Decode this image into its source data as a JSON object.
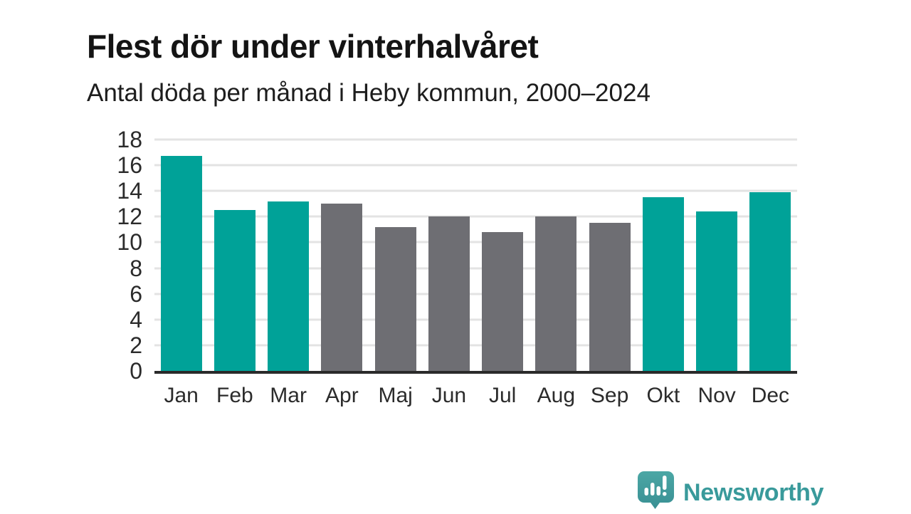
{
  "header": {
    "title": "Flest dör under vinterhalvåret",
    "subtitle": "Antal döda per månad i Heby kommun, 2000–2024"
  },
  "chart_data": {
    "type": "bar",
    "title": "Flest dör under vinterhalvåret",
    "subtitle": "Antal döda per månad i Heby kommun, 2000–2024",
    "categories": [
      "Jan",
      "Feb",
      "Mar",
      "Apr",
      "Maj",
      "Jun",
      "Jul",
      "Aug",
      "Sep",
      "Okt",
      "Nov",
      "Dec"
    ],
    "values": [
      16.7,
      12.5,
      13.2,
      13.0,
      11.2,
      12.0,
      10.8,
      12.0,
      11.5,
      13.5,
      12.4,
      13.9
    ],
    "bar_color_keys": [
      "highlight",
      "highlight",
      "highlight",
      "muted",
      "muted",
      "muted",
      "muted",
      "muted",
      "muted",
      "highlight",
      "highlight",
      "highlight"
    ],
    "colors": {
      "highlight": "#00a298",
      "muted": "#6e6e73"
    },
    "xlabel": "",
    "ylabel": "",
    "ylim": [
      0,
      18
    ],
    "yticks": [
      0,
      2,
      4,
      6,
      8,
      10,
      12,
      14,
      16,
      18
    ],
    "grid": "horizontal",
    "gridline_color": "#e3e3e3",
    "axis_line_color": "#2a2a2a",
    "legend": "none"
  },
  "footer": {
    "brand": "Newsworthy",
    "brand_color": "#399a9b",
    "logo_icon": "newsworthy-speech-bubble-bar-chart-icon"
  }
}
